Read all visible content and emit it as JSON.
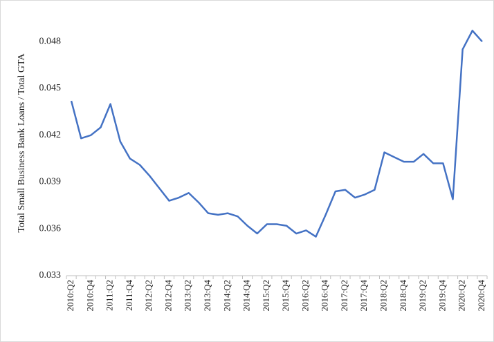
{
  "chart_data": {
    "type": "line",
    "y_label": "Total Small Business Bank Loans / Total GTA",
    "categories": [
      "2010:Q2",
      null,
      "2010:Q4",
      null,
      "2011:Q2",
      null,
      "2011:Q4",
      null,
      "2012:Q2",
      null,
      "2012:Q4",
      null,
      "2013:Q2",
      null,
      "2013:Q4",
      null,
      "2014:Q2",
      null,
      "2014:Q4",
      null,
      "2015:Q2",
      null,
      "2015:Q4",
      null,
      "2016:Q2",
      null,
      "2016:Q4",
      null,
      "2017:Q2",
      null,
      "2017:Q4",
      null,
      "2018:Q2",
      null,
      "2018:Q4",
      null,
      "2019:Q2",
      null,
      "2019:Q4",
      null,
      "2020:Q2",
      null,
      "2020:Q4"
    ],
    "values": [
      0.0442,
      0.0418,
      0.042,
      0.0425,
      0.044,
      0.0416,
      0.0405,
      0.0401,
      0.0394,
      0.0386,
      0.0378,
      0.038,
      0.0383,
      0.0377,
      0.037,
      0.0369,
      0.037,
      0.0368,
      0.0362,
      0.0357,
      0.0363,
      0.0363,
      0.0362,
      0.0357,
      0.0359,
      0.0355,
      0.0369,
      0.0384,
      0.0385,
      0.038,
      0.0382,
      0.0385,
      0.0409,
      0.0406,
      0.0403,
      0.0403,
      0.0408,
      0.0402,
      0.0402,
      0.0379,
      0.0475,
      0.0487,
      0.048
    ],
    "color": "#4472c4",
    "ylim": [
      0.033,
      0.05
    ],
    "yticks": [
      0.033,
      0.036,
      0.039,
      0.042,
      0.045,
      0.048
    ]
  }
}
